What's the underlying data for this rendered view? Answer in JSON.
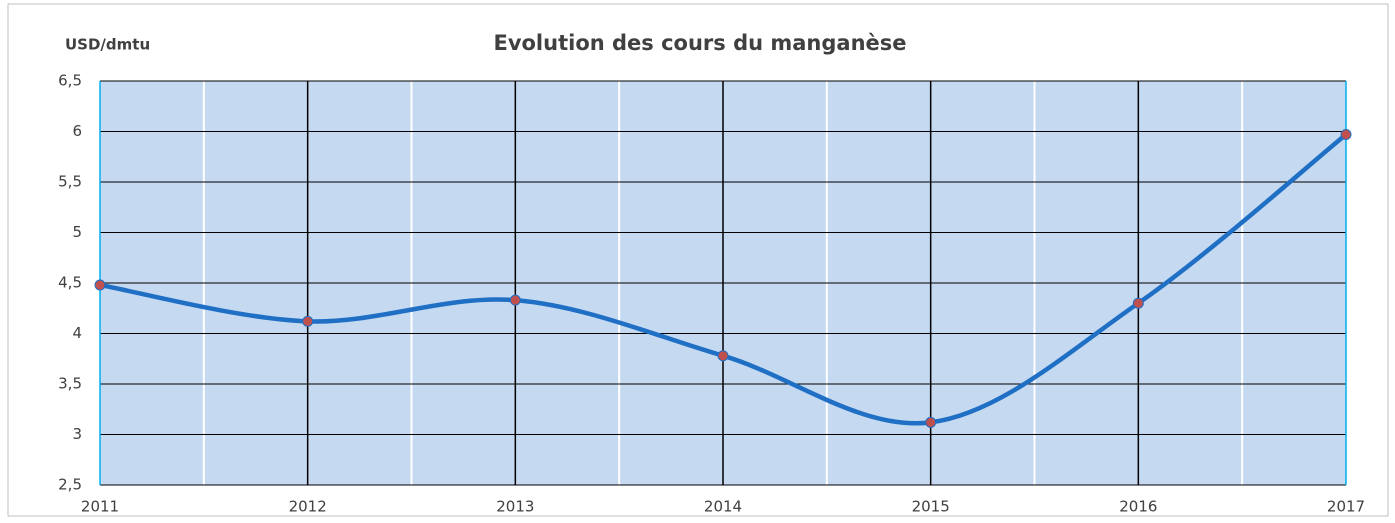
{
  "chart_data": {
    "type": "line",
    "title": "Evolution des cours du manganèse",
    "y_label": "USD/dmtu",
    "x": [
      2011,
      2012,
      2013,
      2014,
      2015,
      2016,
      2017
    ],
    "series": [
      {
        "name": "Manganèse",
        "color": "#1f6fc5",
        "marker_color": "#c0504d",
        "values": [
          4.48,
          4.12,
          4.33,
          3.78,
          3.12,
          4.3,
          5.97
        ]
      }
    ],
    "xlim": [
      2011,
      2017
    ],
    "xticks": [
      2011,
      2012,
      2013,
      2014,
      2015,
      2016,
      2017
    ],
    "xminor_ticks": [
      2011.5,
      2012.5,
      2013.5,
      2014.5,
      2015.5,
      2016.5
    ],
    "ylim": [
      2.5,
      6.5
    ],
    "yticks": [
      {
        "value": 2.5,
        "label": "2,5"
      },
      3,
      {
        "value": 3.5,
        "label": "3,5"
      },
      4,
      {
        "value": 4.5,
        "label": "4,5"
      },
      5,
      {
        "value": 5.5,
        "label": "5,5"
      },
      6,
      {
        "value": 6.5,
        "label": "6,5"
      }
    ],
    "grid": true,
    "smooth": true,
    "plot_background": "#c5d9f1"
  }
}
